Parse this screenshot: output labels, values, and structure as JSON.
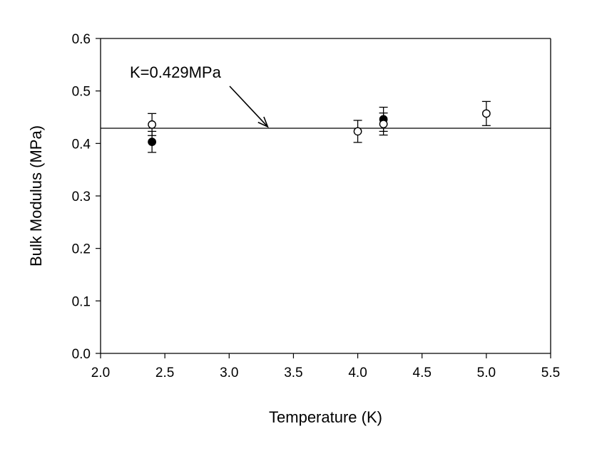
{
  "chart_data": {
    "type": "scatter",
    "title": "",
    "xlabel": "Temperature (K)",
    "ylabel": "Bulk Modulus (MPa)",
    "xlim": [
      2.0,
      5.5
    ],
    "ylim": [
      0.0,
      0.6
    ],
    "x_ticks": [
      "2.0",
      "2.5",
      "3.0",
      "3.5",
      "4.0",
      "4.5",
      "5.0",
      "5.5"
    ],
    "y_ticks": [
      "0.0",
      "0.1",
      "0.2",
      "0.3",
      "0.4",
      "0.5",
      "0.6"
    ],
    "grid": false,
    "series": [
      {
        "marker": "filled-circle",
        "points": [
          {
            "x": 2.4,
            "y": 0.403,
            "err": 0.02
          },
          {
            "x": 4.2,
            "y": 0.446,
            "err": 0.023
          }
        ]
      },
      {
        "marker": "open-circle",
        "points": [
          {
            "x": 2.4,
            "y": 0.436,
            "err": 0.021
          },
          {
            "x": 4.0,
            "y": 0.423,
            "err": 0.021
          },
          {
            "x": 4.2,
            "y": 0.437,
            "err": 0.021
          },
          {
            "x": 5.0,
            "y": 0.457,
            "err": 0.023
          }
        ]
      }
    ],
    "reference_line": {
      "y": 0.429,
      "label": "K=0.429MPa"
    },
    "annotation": {
      "text": "K=0.429MPa",
      "arrow_to": {
        "x": 3.3,
        "y": 0.429
      }
    }
  }
}
